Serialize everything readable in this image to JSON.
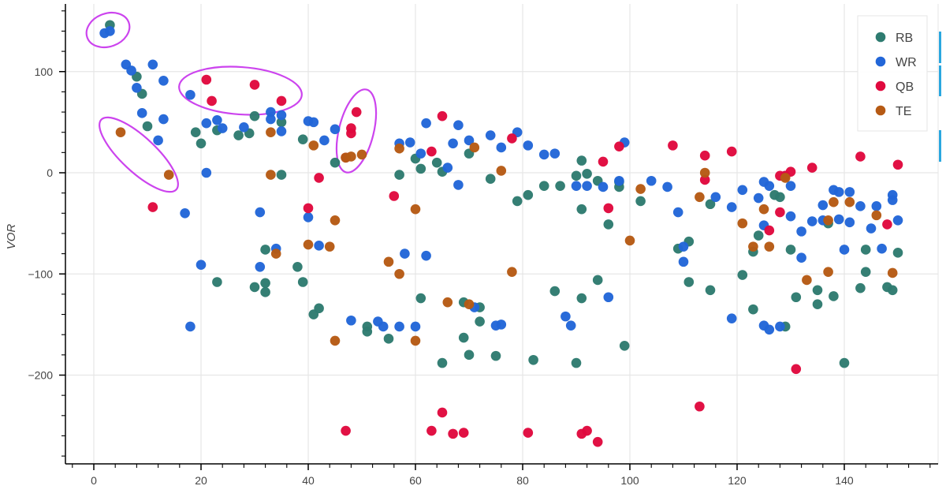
{
  "chart_data": {
    "type": "scatter",
    "title": "",
    "xlabel": "",
    "ylabel": "VOR",
    "xlim": [
      -5,
      157
    ],
    "ylim": [
      -285,
      165
    ],
    "x_ticks": [
      0,
      20,
      40,
      60,
      80,
      100,
      120,
      140
    ],
    "y_ticks": [
      -200,
      -100,
      0,
      100
    ],
    "x_tick_labels": [
      "0",
      "20",
      "40",
      "60",
      "80",
      "100",
      "120",
      "140"
    ],
    "y_tick_labels": [
      "−200",
      "−100",
      "0",
      "100"
    ],
    "grid": true,
    "legend_position": "top-right",
    "colors": {
      "RB": "#2e7b70",
      "WR": "#2266d8",
      "QB": "#e0093e",
      "TE": "#b65a14"
    },
    "series": [
      {
        "name": "RB",
        "points": [
          [
            3,
            146
          ],
          [
            8,
            95
          ],
          [
            9,
            78
          ],
          [
            10,
            46
          ],
          [
            19,
            40
          ],
          [
            20,
            29
          ],
          [
            23,
            42
          ],
          [
            23,
            -108
          ],
          [
            27,
            37
          ],
          [
            29,
            39
          ],
          [
            30,
            56
          ],
          [
            30,
            -113
          ],
          [
            32,
            -76
          ],
          [
            32,
            -109
          ],
          [
            32,
            -118
          ],
          [
            35,
            50
          ],
          [
            35,
            -2
          ],
          [
            38,
            -93
          ],
          [
            39,
            33
          ],
          [
            39,
            -108
          ],
          [
            41,
            -140
          ],
          [
            42,
            -134
          ],
          [
            45,
            10
          ],
          [
            51,
            -152
          ],
          [
            51,
            -157
          ],
          [
            55,
            -164
          ],
          [
            57,
            -2
          ],
          [
            60,
            14
          ],
          [
            61,
            4
          ],
          [
            61,
            -124
          ],
          [
            64,
            10
          ],
          [
            65,
            1
          ],
          [
            65,
            -188
          ],
          [
            69,
            -128
          ],
          [
            69,
            -163
          ],
          [
            70,
            19
          ],
          [
            70,
            -180
          ],
          [
            72,
            -133
          ],
          [
            72,
            -147
          ],
          [
            74,
            -6
          ],
          [
            75,
            -181
          ],
          [
            79,
            -28
          ],
          [
            81,
            -22
          ],
          [
            82,
            -185
          ],
          [
            84,
            -13
          ],
          [
            86,
            -117
          ],
          [
            87,
            -13
          ],
          [
            90,
            -3
          ],
          [
            90,
            -188
          ],
          [
            91,
            12
          ],
          [
            91,
            -36
          ],
          [
            91,
            -124
          ],
          [
            92,
            -1
          ],
          [
            94,
            -8
          ],
          [
            94,
            -106
          ],
          [
            96,
            -51
          ],
          [
            98,
            -9
          ],
          [
            98,
            -14
          ],
          [
            99,
            -171
          ],
          [
            102,
            -28
          ],
          [
            109,
            -75
          ],
          [
            111,
            -68
          ],
          [
            111,
            -108
          ],
          [
            115,
            -31
          ],
          [
            115,
            -116
          ],
          [
            121,
            -101
          ],
          [
            123,
            -78
          ],
          [
            123,
            -135
          ],
          [
            124,
            -62
          ],
          [
            127,
            -22
          ],
          [
            128,
            -24
          ],
          [
            129,
            -152
          ],
          [
            130,
            -76
          ],
          [
            131,
            -123
          ],
          [
            135,
            -116
          ],
          [
            135,
            -130
          ],
          [
            137,
            -50
          ],
          [
            138,
            -122
          ],
          [
            140,
            -188
          ],
          [
            143,
            -114
          ],
          [
            144,
            -76
          ],
          [
            144,
            -98
          ],
          [
            148,
            -113
          ],
          [
            149,
            -116
          ],
          [
            150,
            -79
          ]
        ]
      },
      {
        "name": "WR",
        "points": [
          [
            2,
            138
          ],
          [
            3,
            140
          ],
          [
            6,
            107
          ],
          [
            7,
            101
          ],
          [
            8,
            84
          ],
          [
            9,
            59
          ],
          [
            11,
            107
          ],
          [
            12,
            32
          ],
          [
            13,
            91
          ],
          [
            13,
            53
          ],
          [
            17,
            -40
          ],
          [
            18,
            77
          ],
          [
            18,
            -152
          ],
          [
            20,
            -91
          ],
          [
            21,
            49
          ],
          [
            21,
            0
          ],
          [
            23,
            52
          ],
          [
            24,
            44
          ],
          [
            28,
            45
          ],
          [
            31,
            -39
          ],
          [
            31,
            -93
          ],
          [
            33,
            60
          ],
          [
            33,
            53
          ],
          [
            34,
            -75
          ],
          [
            35,
            57
          ],
          [
            35,
            41
          ],
          [
            40,
            51
          ],
          [
            40,
            -44
          ],
          [
            41,
            50
          ],
          [
            42,
            -72
          ],
          [
            43,
            32
          ],
          [
            45,
            43
          ],
          [
            48,
            -146
          ],
          [
            53,
            -147
          ],
          [
            54,
            -152
          ],
          [
            57,
            29
          ],
          [
            57,
            -152
          ],
          [
            58,
            -80
          ],
          [
            59,
            30
          ],
          [
            60,
            -152
          ],
          [
            61,
            19
          ],
          [
            62,
            -82
          ],
          [
            62,
            49
          ],
          [
            66,
            5
          ],
          [
            67,
            29
          ],
          [
            68,
            47
          ],
          [
            68,
            -12
          ],
          [
            70,
            32
          ],
          [
            71,
            -133
          ],
          [
            74,
            37
          ],
          [
            75,
            -151
          ],
          [
            76,
            -150
          ],
          [
            76,
            25
          ],
          [
            79,
            40
          ],
          [
            81,
            27
          ],
          [
            84,
            18
          ],
          [
            86,
            19
          ],
          [
            88,
            -142
          ],
          [
            89,
            -151
          ],
          [
            90,
            -13
          ],
          [
            92,
            -13
          ],
          [
            95,
            -14
          ],
          [
            96,
            -123
          ],
          [
            98,
            -8
          ],
          [
            99,
            30
          ],
          [
            104,
            -8
          ],
          [
            107,
            -14
          ],
          [
            109,
            -39
          ],
          [
            110,
            -73
          ],
          [
            110,
            -88
          ],
          [
            116,
            -24
          ],
          [
            119,
            -144
          ],
          [
            119,
            -34
          ],
          [
            121,
            -17
          ],
          [
            124,
            -25
          ],
          [
            125,
            -9
          ],
          [
            125,
            -52
          ],
          [
            125,
            -151
          ],
          [
            126,
            -155
          ],
          [
            126,
            -13
          ],
          [
            128,
            -152
          ],
          [
            129,
            -3
          ],
          [
            130,
            -13
          ],
          [
            130,
            -43
          ],
          [
            132,
            -58
          ],
          [
            132,
            -84
          ],
          [
            134,
            -48
          ],
          [
            136,
            -32
          ],
          [
            136,
            -47
          ],
          [
            138,
            -17
          ],
          [
            139,
            -19
          ],
          [
            139,
            -46
          ],
          [
            140,
            -76
          ],
          [
            141,
            -19
          ],
          [
            141,
            -49
          ],
          [
            143,
            -33
          ],
          [
            145,
            -55
          ],
          [
            146,
            -33
          ],
          [
            147,
            -75
          ],
          [
            149,
            -22
          ],
          [
            149,
            -27
          ],
          [
            150,
            -47
          ]
        ]
      },
      {
        "name": "QB",
        "points": [
          [
            11,
            -34
          ],
          [
            21,
            92
          ],
          [
            22,
            71
          ],
          [
            30,
            87
          ],
          [
            35,
            71
          ],
          [
            40,
            -35
          ],
          [
            42,
            -5
          ],
          [
            47,
            15
          ],
          [
            47,
            -255
          ],
          [
            48,
            39
          ],
          [
            48,
            44
          ],
          [
            49,
            60
          ],
          [
            56,
            -23
          ],
          [
            63,
            21
          ],
          [
            63,
            -255
          ],
          [
            65,
            56
          ],
          [
            65,
            -237
          ],
          [
            67,
            -258
          ],
          [
            69,
            -257
          ],
          [
            78,
            34
          ],
          [
            81,
            -257
          ],
          [
            91,
            -258
          ],
          [
            92,
            -255
          ],
          [
            94,
            -266
          ],
          [
            95,
            11
          ],
          [
            96,
            -35
          ],
          [
            98,
            26
          ],
          [
            108,
            27
          ],
          [
            113,
            -231
          ],
          [
            114,
            17
          ],
          [
            114,
            -7
          ],
          [
            119,
            21
          ],
          [
            126,
            -57
          ],
          [
            128,
            -3
          ],
          [
            128,
            -39
          ],
          [
            129,
            -3
          ],
          [
            130,
            1
          ],
          [
            131,
            -194
          ],
          [
            134,
            5
          ],
          [
            143,
            16
          ],
          [
            148,
            -51
          ],
          [
            150,
            8
          ]
        ]
      },
      {
        "name": "TE",
        "points": [
          [
            5,
            40
          ],
          [
            14,
            -2
          ],
          [
            33,
            40
          ],
          [
            33,
            -2
          ],
          [
            34,
            -80
          ],
          [
            40,
            -71
          ],
          [
            41,
            27
          ],
          [
            44,
            -73
          ],
          [
            45,
            -47
          ],
          [
            45,
            -166
          ],
          [
            47,
            15
          ],
          [
            48,
            16
          ],
          [
            50,
            18
          ],
          [
            55,
            -88
          ],
          [
            57,
            -100
          ],
          [
            57,
            24
          ],
          [
            60,
            -36
          ],
          [
            60,
            -166
          ],
          [
            66,
            -128
          ],
          [
            70,
            -130
          ],
          [
            71,
            25
          ],
          [
            76,
            2
          ],
          [
            78,
            -98
          ],
          [
            100,
            -67
          ],
          [
            102,
            -16
          ],
          [
            113,
            -24
          ],
          [
            114,
            0
          ],
          [
            121,
            -50
          ],
          [
            123,
            -73
          ],
          [
            125,
            -36
          ],
          [
            126,
            -73
          ],
          [
            129,
            -5
          ],
          [
            133,
            -106
          ],
          [
            137,
            -47
          ],
          [
            137,
            -98
          ],
          [
            138,
            -29
          ],
          [
            141,
            -29
          ],
          [
            146,
            -42
          ],
          [
            149,
            -99
          ]
        ]
      }
    ],
    "annotations": [
      {
        "type": "ellipse",
        "color": "#cc44ee",
        "around": "top RB/WR cluster near x=2-3, VOR~140"
      },
      {
        "type": "ellipse",
        "color": "#cc44ee",
        "around": "TE points at x=5 and x=14"
      },
      {
        "type": "ellipse",
        "color": "#cc44ee",
        "around": "QB cluster x=18-36, VOR 70-92"
      },
      {
        "type": "ellipse",
        "color": "#cc44ee",
        "around": "QB/TE cluster x=46-50, VOR 15-60"
      }
    ]
  },
  "legend": {
    "items": [
      {
        "label": "RB",
        "color": "#2e7b70"
      },
      {
        "label": "WR",
        "color": "#2266d8"
      },
      {
        "label": "QB",
        "color": "#e0093e"
      },
      {
        "label": "TE",
        "color": "#b65a14"
      }
    ]
  },
  "axes": {
    "ylabel": "VOR"
  }
}
